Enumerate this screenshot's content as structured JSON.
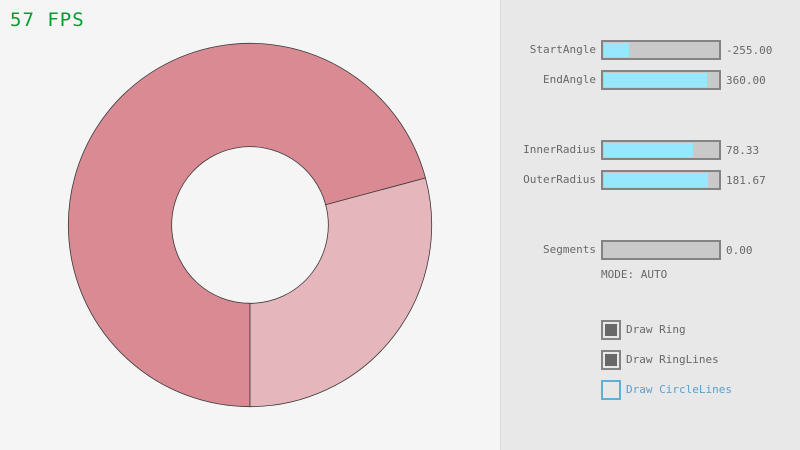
{
  "fps": "57 FPS",
  "ring": {
    "center_label": "",
    "colors": {
      "overlap": "#da8a93",
      "single": "#e5b6bc",
      "outline": "#3a3a3a"
    }
  },
  "sliders": [
    {
      "label": "StartAngle",
      "value": "-255.00",
      "fraction": 0.217
    },
    {
      "label": "EndAngle",
      "value": "360.00",
      "fraction": 0.9
    },
    {
      "label": "InnerRadius",
      "value": "78.33",
      "fraction": 0.783
    },
    {
      "label": "OuterRadius",
      "value": "181.67",
      "fraction": 0.908
    },
    {
      "label": "Segments",
      "value": "0.00",
      "fraction": 0
    }
  ],
  "mode": "MODE: AUTO",
  "checkboxes": [
    {
      "label": "Draw Ring",
      "checked": true
    },
    {
      "label": "Draw RingLines",
      "checked": true
    },
    {
      "label": "Draw CircleLines",
      "checked": false
    }
  ]
}
